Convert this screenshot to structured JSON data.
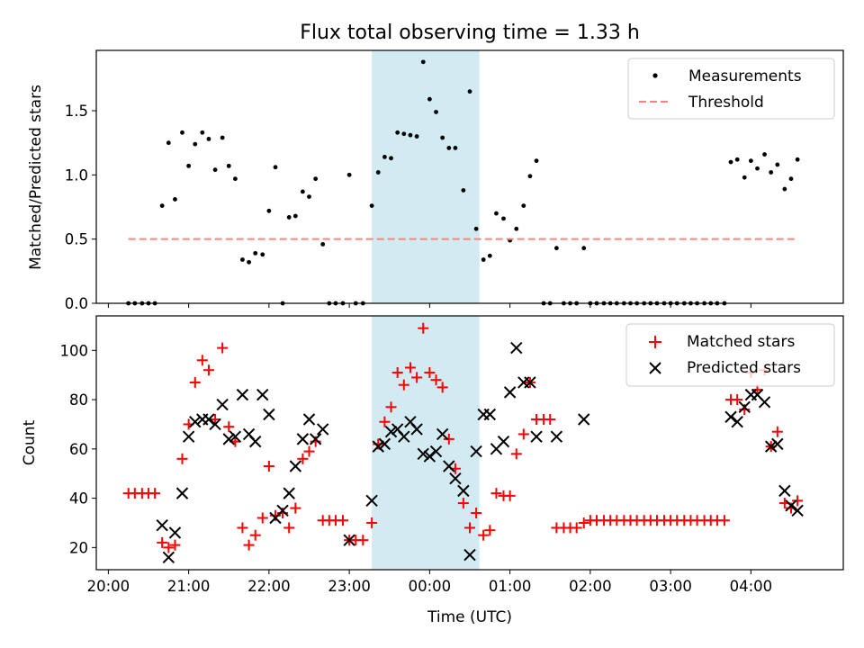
{
  "chart_data": {
    "title": "Flux total observing time = 1.33 h",
    "xlabel": "Time (UTC)",
    "x_unit": "hours since 20:00 UTC",
    "xlim": [
      -0.15,
      9.15
    ],
    "x_ticks": [
      {
        "h": 0,
        "label": "20:00"
      },
      {
        "h": 1,
        "label": "21:00"
      },
      {
        "h": 2,
        "label": "22:00"
      },
      {
        "h": 3,
        "label": "23:00"
      },
      {
        "h": 4,
        "label": "00:00"
      },
      {
        "h": 5,
        "label": "01:00"
      },
      {
        "h": 6,
        "label": "02:00"
      },
      {
        "h": 7,
        "label": "03:00"
      },
      {
        "h": 8,
        "label": "04:00"
      }
    ],
    "highlight_span": {
      "start": 3.28,
      "end": 4.62,
      "color": "#add8e6"
    },
    "top": {
      "type": "scatter",
      "ylabel": "Matched/Predicted stars",
      "ylim": [
        0,
        1.97
      ],
      "yticks": [
        "0.0",
        "0.5",
        "1.0",
        "1.5"
      ],
      "legend_position": "top-right",
      "series": [
        {
          "name": "Measurements",
          "marker": "dot",
          "color": "#000000",
          "points": [
            [
              0.25,
              0
            ],
            [
              0.33,
              0
            ],
            [
              0.42,
              0
            ],
            [
              0.5,
              0
            ],
            [
              0.58,
              0
            ],
            [
              0.67,
              0.76
            ],
            [
              0.75,
              1.25
            ],
            [
              0.83,
              0.81
            ],
            [
              0.92,
              1.33
            ],
            [
              1.0,
              1.07
            ],
            [
              1.08,
              1.24
            ],
            [
              1.17,
              1.33
            ],
            [
              1.25,
              1.28
            ],
            [
              1.33,
              1.04
            ],
            [
              1.42,
              1.29
            ],
            [
              1.5,
              1.07
            ],
            [
              1.58,
              0.97
            ],
            [
              1.67,
              0.34
            ],
            [
              1.75,
              0.32
            ],
            [
              1.83,
              0.39
            ],
            [
              1.92,
              0.38
            ],
            [
              2.0,
              0.72
            ],
            [
              2.08,
              1.06
            ],
            [
              2.17,
              0
            ],
            [
              2.25,
              0.67
            ],
            [
              2.33,
              0.68
            ],
            [
              2.42,
              0.87
            ],
            [
              2.5,
              0.83
            ],
            [
              2.58,
              0.97
            ],
            [
              2.67,
              0.46
            ],
            [
              2.75,
              0
            ],
            [
              2.83,
              0
            ],
            [
              2.92,
              0
            ],
            [
              3.0,
              1.0
            ],
            [
              3.08,
              0
            ],
            [
              3.17,
              0
            ],
            [
              3.28,
              0.76
            ],
            [
              3.36,
              1.02
            ],
            [
              3.44,
              1.14
            ],
            [
              3.52,
              1.13
            ],
            [
              3.6,
              1.33
            ],
            [
              3.68,
              1.32
            ],
            [
              3.76,
              1.31
            ],
            [
              3.84,
              1.3
            ],
            [
              3.92,
              1.88
            ],
            [
              4.0,
              1.59
            ],
            [
              4.08,
              1.49
            ],
            [
              4.16,
              1.29
            ],
            [
              4.24,
              1.21
            ],
            [
              4.32,
              1.21
            ],
            [
              4.42,
              0.88
            ],
            [
              4.5,
              1.65
            ],
            [
              4.58,
              0.58
            ],
            [
              4.67,
              0.34
            ],
            [
              4.75,
              0.37
            ],
            [
              4.83,
              0.7
            ],
            [
              4.92,
              0.66
            ],
            [
              5.0,
              0.49
            ],
            [
              5.08,
              0.58
            ],
            [
              5.17,
              0.76
            ],
            [
              5.25,
              0.99
            ],
            [
              5.33,
              1.11
            ],
            [
              5.42,
              0
            ],
            [
              5.5,
              0
            ],
            [
              5.58,
              0.43
            ],
            [
              5.67,
              0
            ],
            [
              5.75,
              0
            ],
            [
              5.83,
              0
            ],
            [
              5.92,
              0.43
            ],
            [
              6.0,
              0
            ],
            [
              6.08,
              0
            ],
            [
              6.17,
              0
            ],
            [
              6.25,
              0
            ],
            [
              6.33,
              0
            ],
            [
              6.42,
              0
            ],
            [
              6.5,
              0
            ],
            [
              6.58,
              0
            ],
            [
              6.67,
              0
            ],
            [
              6.75,
              0
            ],
            [
              6.83,
              0
            ],
            [
              6.92,
              0
            ],
            [
              7.0,
              0
            ],
            [
              7.08,
              0
            ],
            [
              7.17,
              0
            ],
            [
              7.25,
              0
            ],
            [
              7.33,
              0
            ],
            [
              7.42,
              0
            ],
            [
              7.5,
              0
            ],
            [
              7.58,
              0
            ],
            [
              7.67,
              0
            ],
            [
              7.75,
              1.1
            ],
            [
              7.83,
              1.12
            ],
            [
              7.92,
              0.98
            ],
            [
              8.0,
              1.11
            ],
            [
              8.08,
              1.05
            ],
            [
              8.17,
              1.16
            ],
            [
              8.25,
              1.02
            ],
            [
              8.33,
              1.08
            ],
            [
              8.42,
              0.89
            ],
            [
              8.5,
              0.97
            ],
            [
              8.58,
              1.12
            ]
          ]
        },
        {
          "name": "Threshold",
          "marker": "dashed-line",
          "color": "#ff8080",
          "points": [
            [
              0.25,
              0.5
            ],
            [
              8.55,
              0.5
            ]
          ]
        }
      ]
    },
    "bottom": {
      "type": "scatter",
      "ylabel": "Count",
      "ylim": [
        11,
        114
      ],
      "yticks": [
        "20",
        "40",
        "60",
        "80",
        "100"
      ],
      "legend_position": "top-right",
      "series": [
        {
          "name": "Matched stars",
          "marker": "plus",
          "color": "#ff0000",
          "points": [
            [
              0.25,
              42
            ],
            [
              0.33,
              42
            ],
            [
              0.42,
              42
            ],
            [
              0.5,
              42
            ],
            [
              0.58,
              42
            ],
            [
              0.67,
              22
            ],
            [
              0.75,
              20
            ],
            [
              0.83,
              21
            ],
            [
              0.92,
              56
            ],
            [
              1.0,
              70
            ],
            [
              1.08,
              87
            ],
            [
              1.17,
              96
            ],
            [
              1.25,
              92
            ],
            [
              1.33,
              72
            ],
            [
              1.42,
              101
            ],
            [
              1.5,
              69
            ],
            [
              1.58,
              63
            ],
            [
              1.67,
              28
            ],
            [
              1.75,
              21
            ],
            [
              1.83,
              25
            ],
            [
              1.92,
              32
            ],
            [
              2.0,
              53
            ],
            [
              2.08,
              33
            ],
            [
              2.17,
              34
            ],
            [
              2.25,
              28
            ],
            [
              2.33,
              36
            ],
            [
              2.42,
              56
            ],
            [
              2.5,
              59
            ],
            [
              2.58,
              63
            ],
            [
              2.67,
              31
            ],
            [
              2.75,
              31
            ],
            [
              2.83,
              31
            ],
            [
              2.92,
              31
            ],
            [
              3.0,
              23
            ],
            [
              3.08,
              23
            ],
            [
              3.17,
              23
            ],
            [
              3.28,
              30
            ],
            [
              3.36,
              62
            ],
            [
              3.44,
              71
            ],
            [
              3.52,
              77
            ],
            [
              3.6,
              91
            ],
            [
              3.68,
              86
            ],
            [
              3.76,
              93
            ],
            [
              3.84,
              89
            ],
            [
              3.92,
              109
            ],
            [
              4.0,
              91
            ],
            [
              4.08,
              88
            ],
            [
              4.16,
              85
            ],
            [
              4.24,
              64
            ],
            [
              4.32,
              52
            ],
            [
              4.42,
              38
            ],
            [
              4.5,
              28
            ],
            [
              4.58,
              34
            ],
            [
              4.67,
              25
            ],
            [
              4.75,
              27
            ],
            [
              4.83,
              42
            ],
            [
              4.92,
              41
            ],
            [
              5.0,
              41
            ],
            [
              5.08,
              58
            ],
            [
              5.17,
              66
            ],
            [
              5.25,
              87
            ],
            [
              5.33,
              72
            ],
            [
              5.42,
              72
            ],
            [
              5.5,
              72
            ],
            [
              5.58,
              28
            ],
            [
              5.67,
              28
            ],
            [
              5.75,
              28
            ],
            [
              5.83,
              28
            ],
            [
              5.92,
              30
            ],
            [
              6.0,
              31
            ],
            [
              6.08,
              31
            ],
            [
              6.17,
              31
            ],
            [
              6.25,
              31
            ],
            [
              6.33,
              31
            ],
            [
              6.42,
              31
            ],
            [
              6.5,
              31
            ],
            [
              6.58,
              31
            ],
            [
              6.67,
              31
            ],
            [
              6.75,
              31
            ],
            [
              6.83,
              31
            ],
            [
              6.92,
              31
            ],
            [
              7.0,
              31
            ],
            [
              7.08,
              31
            ],
            [
              7.17,
              31
            ],
            [
              7.25,
              31
            ],
            [
              7.33,
              31
            ],
            [
              7.42,
              31
            ],
            [
              7.5,
              31
            ],
            [
              7.58,
              31
            ],
            [
              7.67,
              31
            ],
            [
              7.75,
              80
            ],
            [
              7.83,
              80
            ],
            [
              7.92,
              76
            ],
            [
              8.0,
              91
            ],
            [
              8.08,
              84
            ],
            [
              8.17,
              92
            ],
            [
              8.25,
              61
            ],
            [
              8.33,
              67
            ],
            [
              8.42,
              38
            ],
            [
              8.5,
              36
            ],
            [
              8.58,
              39
            ]
          ]
        },
        {
          "name": "Predicted stars",
          "marker": "x",
          "color": "#000000",
          "points": [
            [
              0.67,
              29
            ],
            [
              0.75,
              16
            ],
            [
              0.83,
              26
            ],
            [
              0.92,
              42
            ],
            [
              1.0,
              65
            ],
            [
              1.08,
              71
            ],
            [
              1.17,
              72
            ],
            [
              1.25,
              72
            ],
            [
              1.33,
              70
            ],
            [
              1.42,
              78
            ],
            [
              1.5,
              64
            ],
            [
              1.58,
              65
            ],
            [
              1.67,
              82
            ],
            [
              1.75,
              66
            ],
            [
              1.83,
              63
            ],
            [
              1.92,
              82
            ],
            [
              2.0,
              74
            ],
            [
              2.08,
              32
            ],
            [
              2.17,
              35
            ],
            [
              2.25,
              42
            ],
            [
              2.33,
              53
            ],
            [
              2.42,
              64
            ],
            [
              2.5,
              72
            ],
            [
              2.58,
              64
            ],
            [
              2.67,
              68
            ],
            [
              3.0,
              23
            ],
            [
              3.28,
              39
            ],
            [
              3.36,
              61
            ],
            [
              3.44,
              62
            ],
            [
              3.52,
              67
            ],
            [
              3.6,
              68
            ],
            [
              3.68,
              65
            ],
            [
              3.76,
              71
            ],
            [
              3.84,
              68
            ],
            [
              3.92,
              58
            ],
            [
              4.0,
              57
            ],
            [
              4.08,
              59
            ],
            [
              4.16,
              66
            ],
            [
              4.24,
              53
            ],
            [
              4.32,
              48
            ],
            [
              4.42,
              43
            ],
            [
              4.5,
              17
            ],
            [
              4.58,
              59
            ],
            [
              4.67,
              74
            ],
            [
              4.75,
              74
            ],
            [
              4.83,
              60
            ],
            [
              4.92,
              63
            ],
            [
              5.0,
              83
            ],
            [
              5.08,
              101
            ],
            [
              5.17,
              87
            ],
            [
              5.25,
              87
            ],
            [
              5.33,
              65
            ],
            [
              5.58,
              65
            ],
            [
              5.92,
              72
            ],
            [
              7.75,
              73
            ],
            [
              7.83,
              71
            ],
            [
              7.92,
              77
            ],
            [
              8.0,
              82
            ],
            [
              8.08,
              82
            ],
            [
              8.17,
              79
            ],
            [
              8.25,
              61
            ],
            [
              8.33,
              62
            ],
            [
              8.42,
              43
            ],
            [
              8.5,
              37
            ],
            [
              8.58,
              35
            ]
          ]
        }
      ]
    }
  }
}
